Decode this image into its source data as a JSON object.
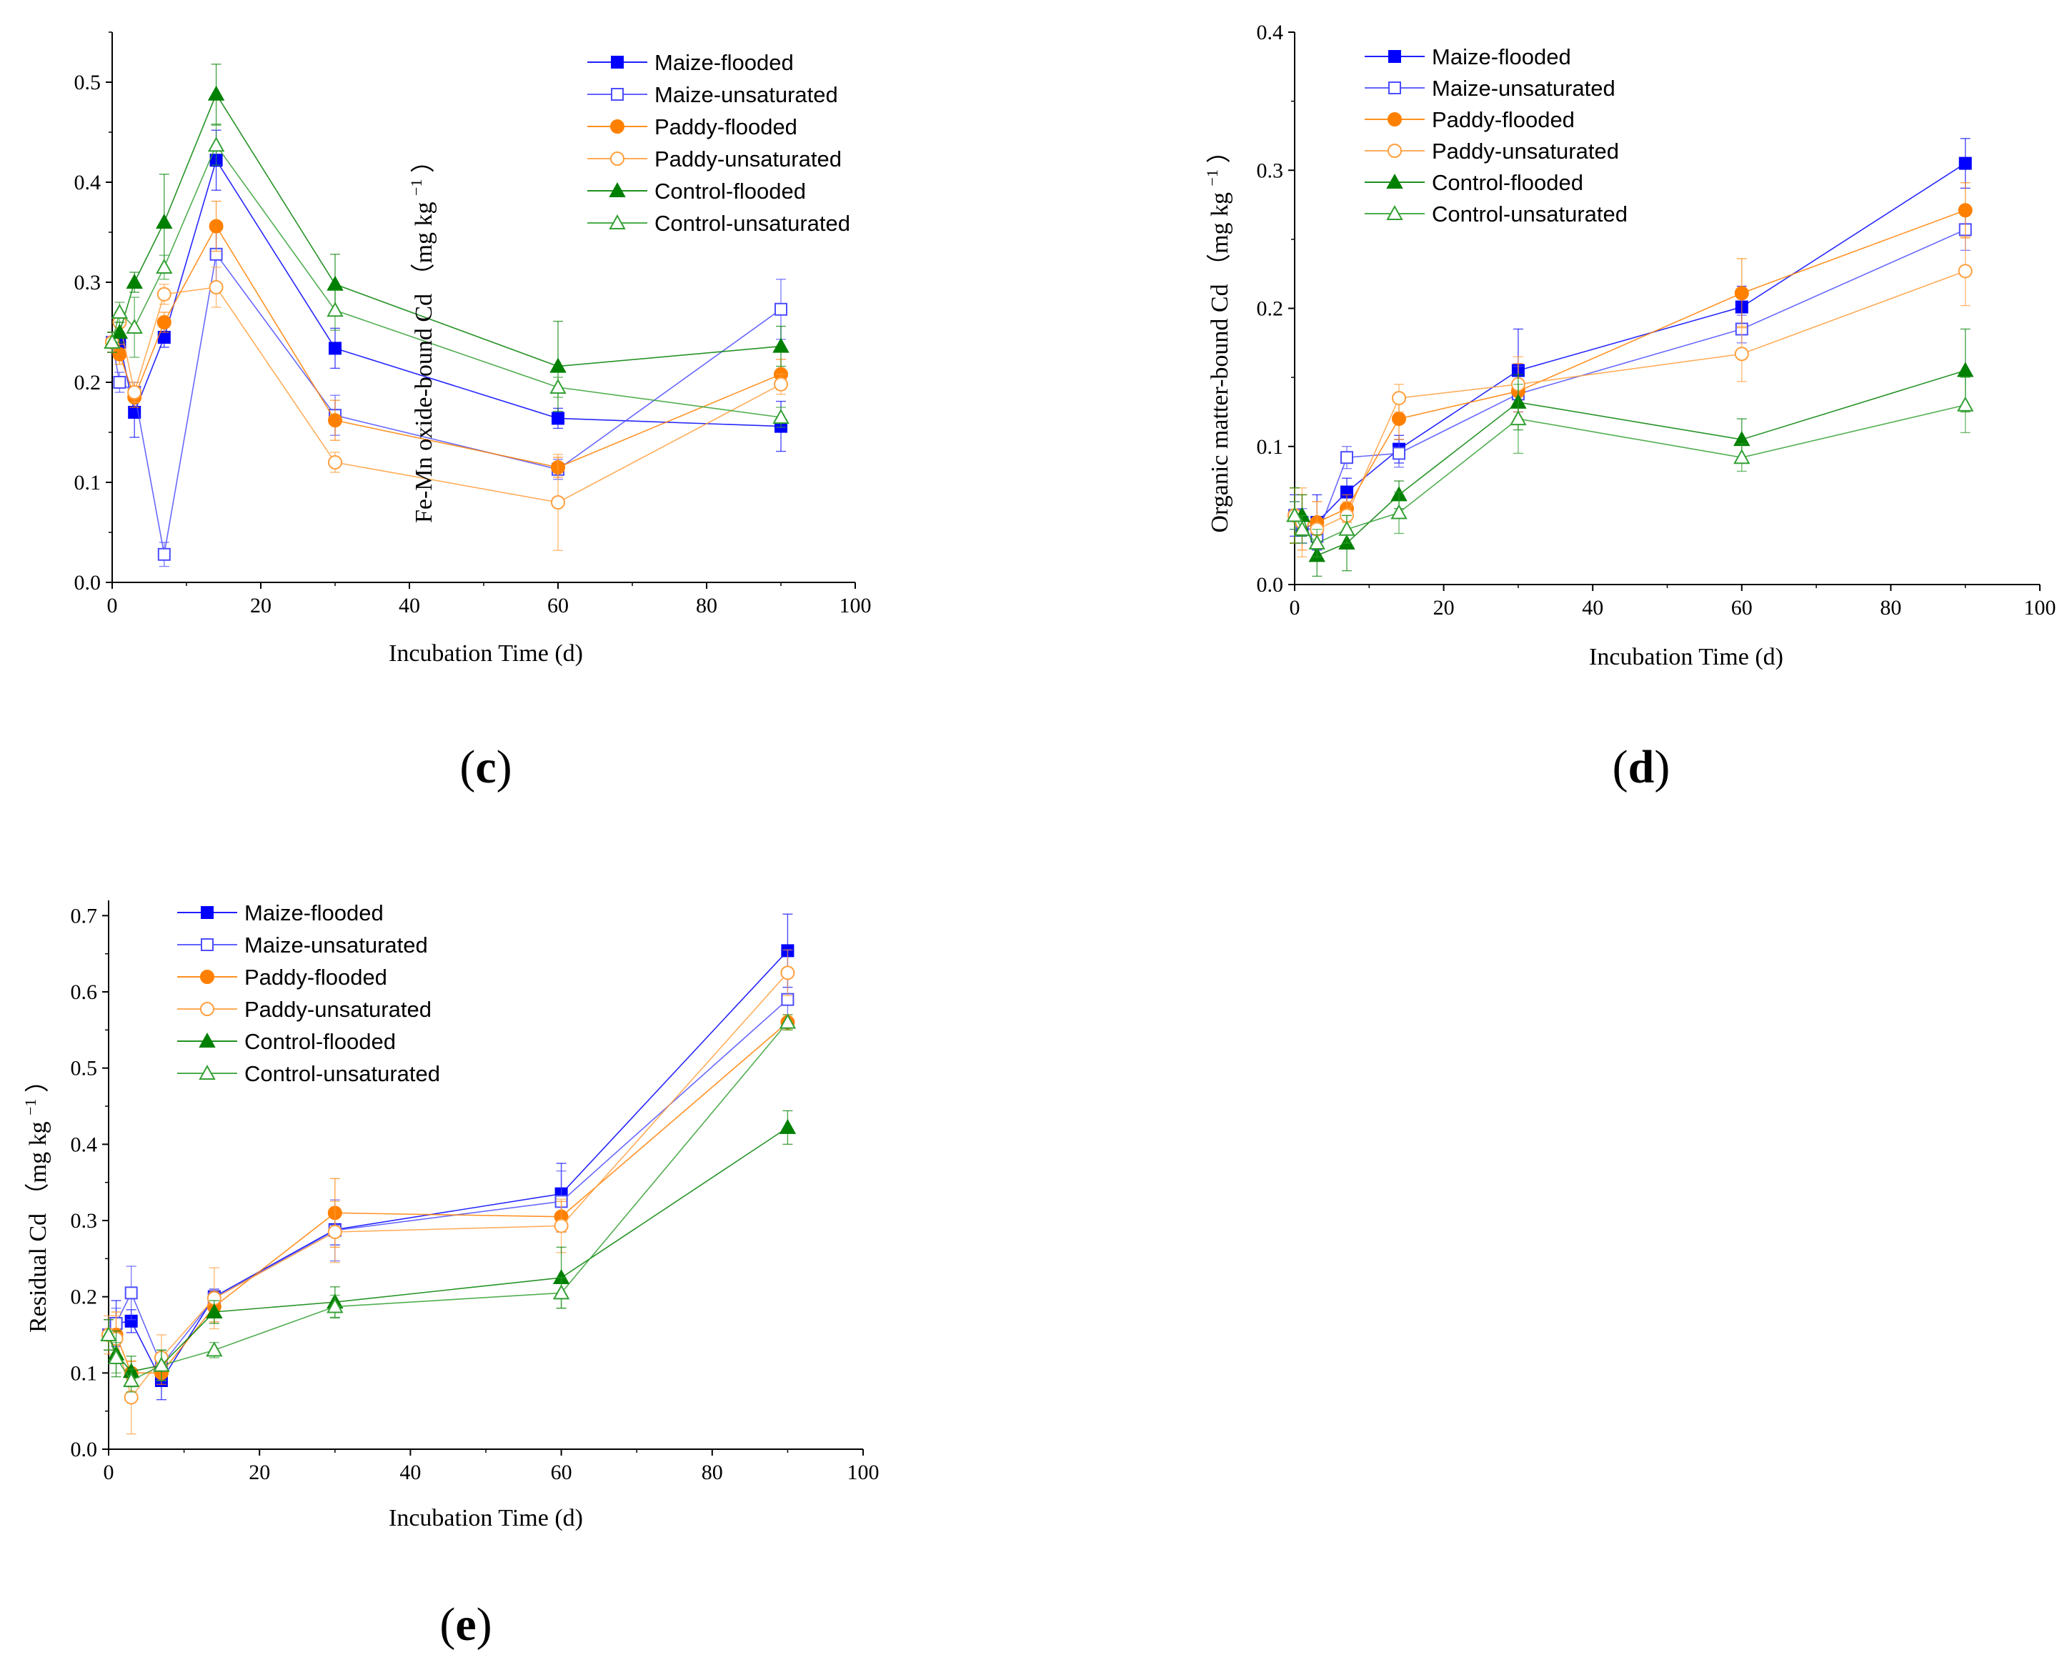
{
  "figure": {
    "series_styles": [
      {
        "name": "Maize-flooded",
        "color": "#0000ff",
        "marker": "square",
        "filled": true
      },
      {
        "name": "Maize-unsaturated",
        "color": "#4d4dff",
        "marker": "square",
        "filled": false
      },
      {
        "name": "Paddy-flooded",
        "color": "#ff8000",
        "marker": "circle",
        "filled": true
      },
      {
        "name": "Paddy-unsaturated",
        "color": "#ffa040",
        "marker": "circle",
        "filled": false
      },
      {
        "name": "Control-flooded",
        "color": "#008000",
        "marker": "triangle",
        "filled": true
      },
      {
        "name": "Control-unsaturated",
        "color": "#33a033",
        "marker": "triangle",
        "filled": false
      }
    ]
  },
  "chart_data": [
    {
      "id": "c",
      "type": "line",
      "panel_label": "c",
      "xlabel": "Incubation Time (d)",
      "ylabel_main": "Fe-Mn oxide-bound Cd",
      "ylabel_unit": "（mg kg",
      "ylabel_sup": "−1",
      "ylabel_close": "）",
      "xlim": [
        0,
        100
      ],
      "ylim": [
        0,
        0.55
      ],
      "xticks": [
        "0",
        "20",
        "40",
        "60",
        "80",
        "100"
      ],
      "yticks": [
        "0.0",
        "0.1",
        "0.2",
        "0.3",
        "0.4",
        "0.5"
      ],
      "x": [
        0,
        1,
        3,
        7,
        14,
        30,
        60,
        90
      ],
      "legend_position": "top-right",
      "series": [
        {
          "name": "Maize-flooded",
          "values": [
            0.24,
            0.24,
            0.17,
            0.245,
            0.422,
            0.234,
            0.164,
            0.156
          ],
          "err": [
            0.01,
            0.01,
            0.025,
            0.01,
            0.03,
            0.02,
            0.01,
            0.025
          ]
        },
        {
          "name": "Maize-unsaturated",
          "values": [
            0.24,
            0.2,
            0.19,
            0.028,
            0.328,
            0.167,
            0.113,
            0.273
          ],
          "err": [
            0.01,
            0.01,
            0.01,
            0.012,
            0.03,
            0.02,
            0.01,
            0.03
          ]
        },
        {
          "name": "Paddy-flooded",
          "values": [
            0.24,
            0.228,
            0.185,
            0.26,
            0.356,
            0.162,
            0.115,
            0.208
          ],
          "err": [
            0.01,
            0.01,
            0.01,
            0.01,
            0.025,
            0.02,
            0.01,
            0.015
          ]
        },
        {
          "name": "Paddy-unsaturated",
          "values": [
            0.24,
            0.26,
            0.19,
            0.288,
            0.295,
            0.12,
            0.08,
            0.198
          ],
          "err": [
            0.01,
            0.01,
            0.01,
            0.01,
            0.02,
            0.01,
            0.048,
            0.01
          ]
        },
        {
          "name": "Control-flooded",
          "values": [
            0.24,
            0.25,
            0.3,
            0.36,
            0.488,
            0.298,
            0.216,
            0.236
          ],
          "err": [
            0.01,
            0.01,
            0.01,
            0.048,
            0.03,
            0.03,
            0.045,
            0.02
          ]
        },
        {
          "name": "Control-unsaturated",
          "values": [
            0.24,
            0.27,
            0.255,
            0.315,
            0.437,
            0.272,
            0.195,
            0.165
          ],
          "err": [
            0.01,
            0.01,
            0.03,
            0.012,
            0.02,
            0.02,
            0.01,
            0.01
          ]
        }
      ]
    },
    {
      "id": "d",
      "type": "line",
      "panel_label": "d",
      "xlabel": "Incubation Time (d)",
      "ylabel_main": "Organic matter-bound Cd",
      "ylabel_unit": "（mg kg",
      "ylabel_sup": "−1",
      "ylabel_close": "）",
      "xlim": [
        0,
        100
      ],
      "ylim": [
        0,
        0.4
      ],
      "xticks": [
        "0",
        "20",
        "40",
        "60",
        "80",
        "100"
      ],
      "yticks": [
        "0.0",
        "0.1",
        "0.2",
        "0.3",
        "0.4"
      ],
      "x": [
        0,
        1,
        3,
        7,
        14,
        30,
        60,
        90
      ],
      "legend_position": "top-left",
      "series": [
        {
          "name": "Maize-flooded",
          "values": [
            0.05,
            0.04,
            0.045,
            0.067,
            0.098,
            0.155,
            0.201,
            0.305
          ],
          "err": [
            0.015,
            0.01,
            0.02,
            0.01,
            0.01,
            0.03,
            0.015,
            0.018
          ]
        },
        {
          "name": "Maize-unsaturated",
          "values": [
            0.05,
            0.045,
            0.035,
            0.092,
            0.095,
            0.138,
            0.185,
            0.257
          ],
          "err": [
            0.01,
            0.01,
            0.01,
            0.008,
            0.01,
            0.02,
            0.01,
            0.015
          ]
        },
        {
          "name": "Paddy-flooded",
          "values": [
            0.05,
            0.045,
            0.045,
            0.055,
            0.12,
            0.14,
            0.211,
            0.271
          ],
          "err": [
            0.02,
            0.02,
            0.015,
            0.01,
            0.015,
            0.02,
            0.025,
            0.02
          ]
        },
        {
          "name": "Paddy-unsaturated",
          "values": [
            0.05,
            0.045,
            0.04,
            0.05,
            0.135,
            0.145,
            0.167,
            0.227
          ],
          "err": [
            0.02,
            0.025,
            0.02,
            0.01,
            0.01,
            0.02,
            0.02,
            0.025
          ]
        },
        {
          "name": "Control-flooded",
          "values": [
            0.05,
            0.05,
            0.021,
            0.03,
            0.065,
            0.132,
            0.105,
            0.155
          ],
          "err": [
            0.02,
            0.015,
            0.015,
            0.02,
            0.01,
            0.02,
            0.015,
            0.03
          ]
        },
        {
          "name": "Control-unsaturated",
          "values": [
            0.05,
            0.04,
            0.03,
            0.04,
            0.052,
            0.12,
            0.092,
            0.13
          ],
          "err": [
            0.01,
            0.01,
            0.01,
            0.01,
            0.015,
            0.025,
            0.01,
            0.02
          ]
        }
      ]
    },
    {
      "id": "e",
      "type": "line",
      "panel_label": "e",
      "xlabel": "Incubation Time (d)",
      "ylabel_main": "Residual Cd",
      "ylabel_unit": "（mg kg",
      "ylabel_sup": "−1",
      "ylabel_close": "）",
      "xlim": [
        0,
        100
      ],
      "ylim": [
        0,
        0.72
      ],
      "xticks": [
        "0",
        "20",
        "40",
        "60",
        "80",
        "100"
      ],
      "yticks": [
        "0.0",
        "0.1",
        "0.2",
        "0.3",
        "0.4",
        "0.5",
        "0.6",
        "0.7"
      ],
      "x": [
        0,
        1,
        3,
        7,
        14,
        30,
        60,
        90
      ],
      "legend_position": "top-left",
      "series": [
        {
          "name": "Maize-flooded",
          "values": [
            0.15,
            0.165,
            0.168,
            0.09,
            0.2,
            0.288,
            0.335,
            0.654
          ],
          "err": [
            0.02,
            0.03,
            0.015,
            0.025,
            0.01,
            0.02,
            0.04,
            0.048
          ]
        },
        {
          "name": "Maize-unsaturated",
          "values": [
            0.15,
            0.165,
            0.205,
            0.11,
            0.198,
            0.287,
            0.325,
            0.59
          ],
          "err": [
            0.02,
            0.02,
            0.035,
            0.02,
            0.01,
            0.04,
            0.04,
            0.03
          ]
        },
        {
          "name": "Paddy-flooded",
          "values": [
            0.15,
            0.15,
            0.1,
            0.1,
            0.187,
            0.31,
            0.305,
            0.56
          ],
          "err": [
            0.02,
            0.03,
            0.015,
            0.015,
            0.02,
            0.045,
            0.02,
            0.01
          ]
        },
        {
          "name": "Paddy-unsaturated",
          "values": [
            0.15,
            0.145,
            0.068,
            0.12,
            0.198,
            0.285,
            0.293,
            0.625
          ],
          "err": [
            0.025,
            0.03,
            0.048,
            0.03,
            0.04,
            0.04,
            0.035,
            0.03
          ]
        },
        {
          "name": "Control-flooded",
          "values": [
            0.15,
            0.125,
            0.102,
            0.11,
            0.18,
            0.193,
            0.225,
            0.422
          ],
          "err": [
            0.02,
            0.03,
            0.02,
            0.02,
            0.015,
            0.02,
            0.04,
            0.022
          ]
        },
        {
          "name": "Control-unsaturated",
          "values": [
            0.15,
            0.12,
            0.09,
            0.11,
            0.13,
            0.187,
            0.205,
            0.56
          ],
          "err": [
            0.02,
            0.02,
            0.015,
            0.02,
            0.01,
            0.015,
            0.02,
            0.01
          ]
        }
      ]
    }
  ]
}
